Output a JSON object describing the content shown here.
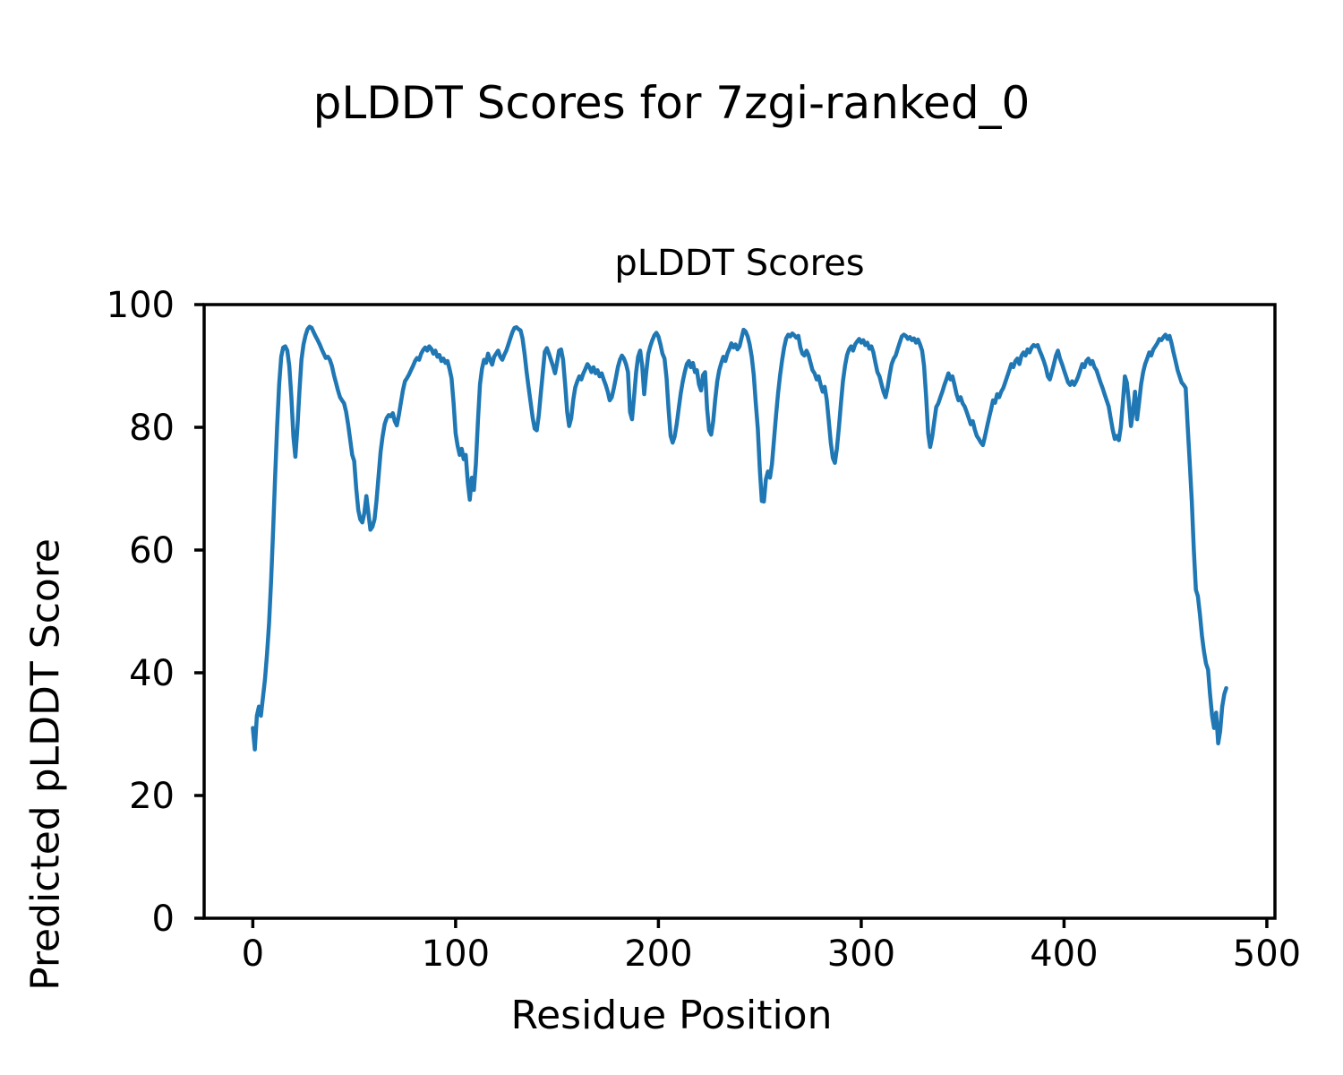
{
  "figure": {
    "suptitle": "pLDDT Scores for 7zgi-ranked_0",
    "background_color": "#ffffff",
    "text_color": "#000000"
  },
  "chart_data": {
    "type": "line",
    "title": "pLDDT Scores",
    "xlabel": "Residue Position",
    "ylabel": "Predicted pLDDT Score",
    "xlim": [
      -24,
      504
    ],
    "ylim": [
      0,
      100
    ],
    "x_ticks": [
      0,
      100,
      200,
      300,
      400,
      500
    ],
    "y_ticks": [
      0,
      20,
      40,
      60,
      80,
      100
    ],
    "grid": false,
    "legend": "none",
    "series": [
      {
        "name": "pLDDT",
        "color": "#1f77b4",
        "line_width": 4.5,
        "x_start": 0,
        "x_step": 1,
        "values": [
          31,
          27.5,
          33,
          34.5,
          33,
          36,
          39,
          43,
          48,
          55,
          63,
          72,
          80,
          87,
          91.5,
          93,
          93.2,
          92.5,
          90,
          85,
          78.5,
          75.2,
          80,
          86,
          91,
          93.5,
          95,
          96,
          96.4,
          96.2,
          95.5,
          94.8,
          94.2,
          93.5,
          92.7,
          92,
          91.3,
          91.5,
          91,
          90,
          88.5,
          87.3,
          86,
          84.9,
          84.4,
          83.9,
          82.5,
          80.5,
          78,
          75.5,
          74.5,
          70,
          66.5,
          65,
          64.5,
          66,
          68.8,
          66,
          63.3,
          63.8,
          65,
          68,
          72,
          76,
          78.5,
          80.5,
          81.5,
          82,
          81.8,
          82.3,
          81,
          80.3,
          82,
          84,
          86,
          87.5,
          88,
          88.6,
          89.3,
          90,
          90.8,
          91.3,
          91,
          92,
          92.6,
          93,
          92.5,
          93.2,
          92.8,
          92,
          92.5,
          91.5,
          91.8,
          90.8,
          91.2,
          90.5,
          90.8,
          89.5,
          88,
          84,
          79,
          77,
          75.5,
          76.5,
          74.8,
          75.5,
          71,
          68.2,
          71.8,
          69.8,
          74,
          81,
          87,
          89.5,
          91,
          90.5,
          92,
          91,
          90.2,
          91.5,
          92,
          92.5,
          91.5,
          91,
          91.8,
          92.5,
          93.5,
          94.5,
          95.5,
          96.2,
          96.3,
          96,
          95.8,
          94.5,
          92,
          89,
          86.5,
          84,
          81.5,
          79.8,
          79.5,
          82,
          85.5,
          89,
          92.3,
          92.9,
          92,
          91,
          90,
          88.8,
          90.5,
          92.5,
          92.7,
          91,
          87,
          82.5,
          80.2,
          81.5,
          84.5,
          86.5,
          87.5,
          88.3,
          87.8,
          88.8,
          89.5,
          90.3,
          89.8,
          89,
          89.8,
          88.8,
          89.3,
          88.3,
          88.8,
          87.8,
          86.9,
          85.8,
          84.4,
          84.9,
          86.4,
          88,
          89.8,
          91,
          91.7,
          91.2,
          90.3,
          89,
          82.5,
          81.3,
          85,
          89,
          91.5,
          92.5,
          90,
          85.4,
          89,
          92,
          93.2,
          94.2,
          95,
          95.4,
          94.8,
          93.5,
          92,
          91.2,
          88,
          83,
          78.6,
          77.5,
          78.5,
          80.5,
          83,
          85.5,
          87.5,
          89,
          90.3,
          90.8,
          89.8,
          90.5,
          89,
          89.3,
          87,
          86,
          88.5,
          89,
          83,
          79.5,
          78.8,
          81,
          84.5,
          87.5,
          89.3,
          90.5,
          91.5,
          90.8,
          92,
          92.8,
          93.7,
          93,
          93.5,
          92.7,
          93.2,
          94.6,
          95.9,
          95.6,
          94.8,
          93.5,
          91.5,
          88.5,
          84,
          79.8,
          73,
          68,
          67.9,
          71.5,
          72.8,
          71.8,
          74,
          78,
          82,
          85.5,
          88.5,
          91,
          93,
          94.5,
          95.1,
          94.8,
          95.3,
          95,
          94.6,
          94.9,
          93,
          92,
          91.7,
          92.5,
          91.8,
          90.5,
          89.3,
          88.8,
          87.8,
          88.3,
          86.9,
          85.8,
          86.6,
          84.5,
          81,
          77.5,
          75,
          74.2,
          76.5,
          80,
          84,
          87.5,
          90,
          91.8,
          92.7,
          93.2,
          92.5,
          93.5,
          94,
          94.4,
          93.8,
          94.2,
          93.4,
          93.8,
          92.8,
          93.2,
          92.2,
          90.5,
          89,
          88.3,
          87,
          85.8,
          84.9,
          86.5,
          88.5,
          90.3,
          91.2,
          91.7,
          92.8,
          93.8,
          94.8,
          95.1,
          94.9,
          94.4,
          94.7,
          94.2,
          94.5,
          93.8,
          94.3,
          93.5,
          92.5,
          90,
          85,
          79,
          76.8,
          78.5,
          81,
          83.3,
          83.9,
          84.9,
          85.8,
          86.9,
          87.8,
          88.8,
          87.8,
          88.3,
          86.9,
          85.4,
          84.4,
          84.9,
          83.9,
          83.4,
          82.5,
          81.5,
          80.5,
          81,
          79.6,
          78.6,
          78.1,
          77.5,
          77.1,
          78.5,
          80,
          81.5,
          82.9,
          84.4,
          84,
          85.4,
          84.9,
          85.8,
          86.4,
          87.3,
          88.3,
          89.3,
          90.3,
          89.8,
          90.8,
          91.2,
          90.3,
          91.7,
          92.2,
          91.7,
          92.7,
          92.2,
          93,
          93.4,
          93.2,
          93.4,
          92.5,
          91.7,
          90.8,
          89.8,
          88.3,
          87.8,
          89,
          90.3,
          91.7,
          92.5,
          91.2,
          90.3,
          89.3,
          88.3,
          87.3,
          86.9,
          87.5,
          86.9,
          87.5,
          88.3,
          89.3,
          90.3,
          89.8,
          90.8,
          91.2,
          90.3,
          90.8,
          89.8,
          89.3,
          88.3,
          87.3,
          86.4,
          85.4,
          84.4,
          83.4,
          81.5,
          79.6,
          78.1,
          78.6,
          77.9,
          80,
          84,
          88.3,
          87.3,
          84,
          80.2,
          82.5,
          85.8,
          81.3,
          84,
          87,
          89,
          90.3,
          91.2,
          92.2,
          91.7,
          92.7,
          93.2,
          93.7,
          94.4,
          94.2,
          94.7,
          95.1,
          94.4,
          94.9,
          93.7,
          92.2,
          90.8,
          89.3,
          88.3,
          87.3,
          86.9,
          86.4,
          80,
          74,
          68,
          60,
          53.5,
          52.5,
          49.5,
          46,
          43.5,
          41.5,
          40.5,
          36.5,
          33,
          31,
          33.5,
          28.5,
          30.5,
          34.5,
          36.5,
          37.5
        ]
      }
    ]
  }
}
